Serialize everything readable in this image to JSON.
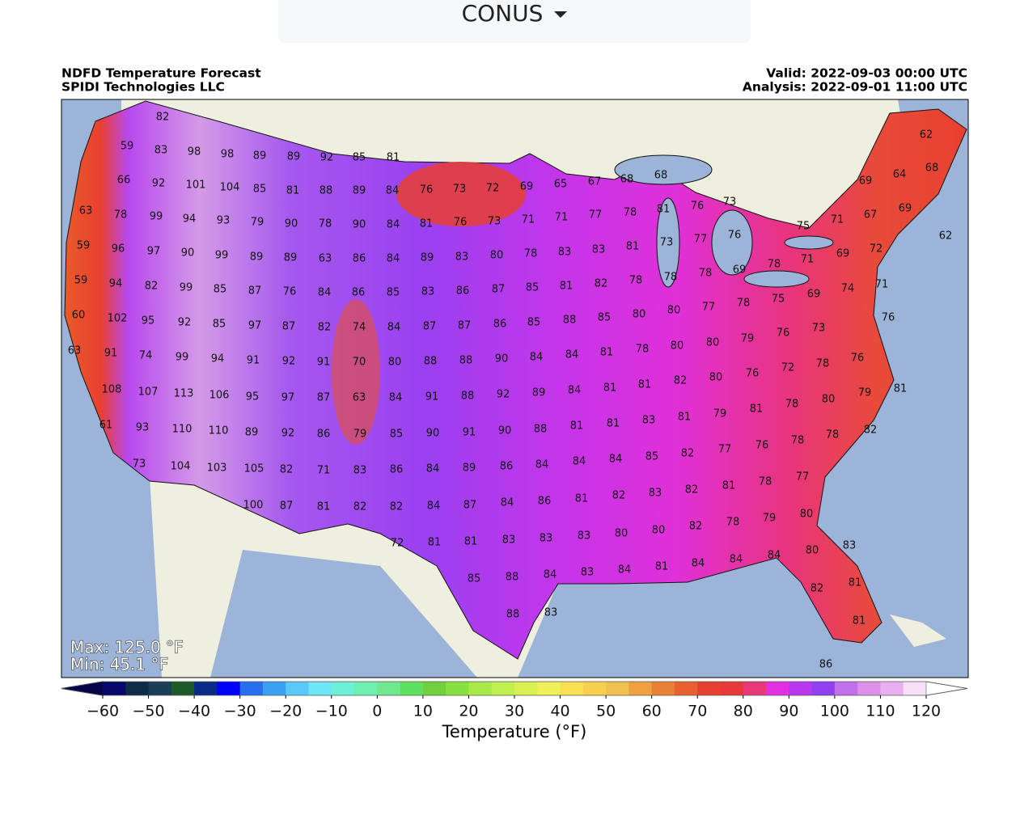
{
  "dropdown": {
    "label": "CONUS"
  },
  "header": {
    "title": "NDFD Temperature Forecast",
    "subtitle": "SPIDI Technologies LLC",
    "valid": "Valid: 2022-09-03 00:00 UTC",
    "analysis": "Analysis: 2022-09-01 11:00 UTC"
  },
  "map": {
    "max": "Max: 125.0 °F",
    "min": "Min: 45.1 °F",
    "labels": [
      82,
      59,
      83,
      98,
      98,
      89,
      89,
      92,
      85,
      81,
      66,
      92,
      101,
      104,
      85,
      81,
      88,
      89,
      84,
      76,
      73,
      72,
      69,
      65,
      67,
      68,
      68,
      62,
      64,
      69,
      68,
      63,
      78,
      99,
      94,
      93,
      79,
      90,
      78,
      90,
      84,
      81,
      76,
      73,
      71,
      71,
      77,
      78,
      81,
      76,
      73,
      59,
      96,
      97,
      90,
      99,
      89,
      89,
      63,
      86,
      84,
      89,
      83,
      80,
      78,
      83,
      83,
      81,
      73,
      77,
      76,
      75,
      71,
      67,
      69,
      62,
      72,
      69,
      71,
      59,
      94,
      82,
      99,
      85,
      87,
      76,
      84,
      86,
      85,
      83,
      86,
      87,
      85,
      81,
      82,
      78,
      78,
      78,
      69,
      78,
      69,
      74,
      71,
      75,
      60,
      102,
      95,
      92,
      85,
      97,
      87,
      82,
      74,
      84,
      87,
      87,
      86,
      85,
      88,
      85,
      80,
      80,
      77,
      78,
      76,
      76,
      73,
      79,
      80,
      80,
      78,
      63,
      91,
      74,
      99,
      94,
      91,
      92,
      91,
      70,
      80,
      88,
      88,
      90,
      84,
      84,
      81,
      72,
      78,
      76,
      108,
      107,
      113,
      106,
      95,
      97,
      87,
      63,
      84,
      91,
      88,
      92,
      89,
      84,
      81,
      81,
      82,
      80,
      76,
      81,
      79,
      80,
      78,
      81,
      79,
      81,
      83,
      81,
      81,
      61,
      93,
      110,
      110,
      89,
      92,
      86,
      79,
      85,
      90,
      91,
      90,
      88,
      82,
      78,
      78,
      76,
      77,
      82,
      85,
      84,
      84,
      73,
      104,
      103,
      105,
      82,
      71,
      83,
      86,
      84,
      89,
      86,
      84,
      77,
      78,
      81,
      82,
      83,
      82,
      81,
      100,
      87,
      81,
      82,
      82,
      84,
      87,
      84,
      86,
      80,
      79,
      78,
      82,
      80,
      80,
      83,
      72,
      81,
      81,
      83,
      83,
      83,
      80,
      84,
      84,
      84,
      81,
      84,
      83,
      84,
      88,
      85,
      82,
      81,
      88,
      83,
      81,
      86
    ]
  },
  "colorbar": {
    "label": "Temperature (°F)",
    "range": [
      -60,
      120
    ],
    "ticks": [
      {
        "value": -60,
        "label": "−60"
      },
      {
        "value": -50,
        "label": "−50"
      },
      {
        "value": -40,
        "label": "−40"
      },
      {
        "value": -30,
        "label": "−30"
      },
      {
        "value": -20,
        "label": "−20"
      },
      {
        "value": -10,
        "label": "−10"
      },
      0,
      10,
      20,
      30,
      40,
      50,
      60,
      70,
      80,
      90,
      100,
      110,
      120
    ],
    "colors": [
      "#08086b",
      "#0d2c48",
      "#1a3d58",
      "#1e5a28",
      "#0a2a8a",
      "#0000ff",
      "#2a6ef0",
      "#3aa0f0",
      "#5ac8f8",
      "#6ee6f8",
      "#6cf0d8",
      "#70f0b0",
      "#70e890",
      "#60e060",
      "#70d040",
      "#88e040",
      "#a8e848",
      "#c0f050",
      "#d8f050",
      "#f0f058",
      "#f8e050",
      "#f8d050",
      "#f0c050",
      "#f0a040",
      "#e88038",
      "#e86030",
      "#e84030",
      "#e83838",
      "#e83878",
      "#e030e0",
      "#b838f0",
      "#9040f0",
      "#c070e8",
      "#dc90e8",
      "#e8b0f0",
      "#f8e0f8"
    ],
    "under": "#05054a",
    "over": "#ffffff"
  }
}
